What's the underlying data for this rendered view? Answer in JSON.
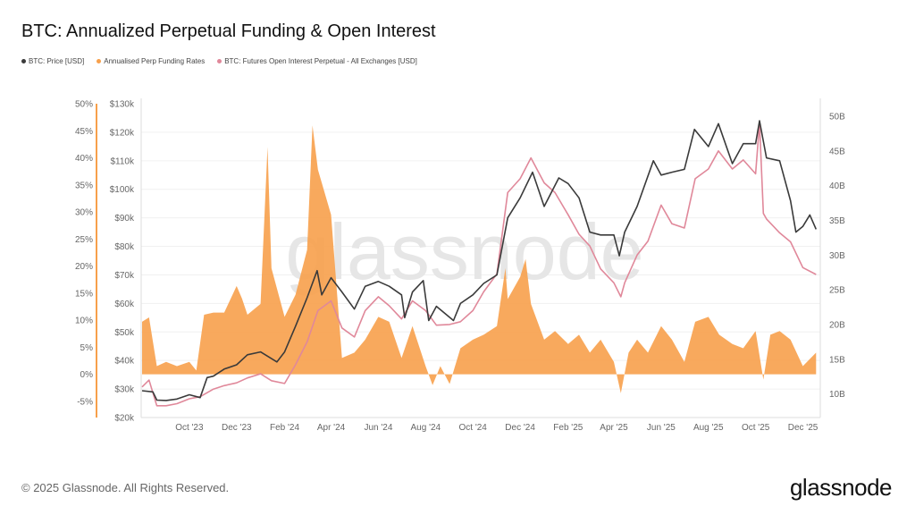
{
  "title": "BTC: Annualized Perpetual Funding & Open Interest",
  "legend": [
    {
      "label": "BTC: Price [USD]",
      "color": "#3a3a3a"
    },
    {
      "label": "Annualised Perp Funding Rates",
      "color": "#f7a04b"
    },
    {
      "label": "BTC: Futures Open Interest Perpetual - All Exchanges [USD]",
      "color": "#e0889a"
    }
  ],
  "watermark": "glassnode",
  "footer": "© 2025 Glassnode. All Rights Reserved.",
  "logo": "glassnode",
  "chart_data": {
    "type": "line",
    "title": "BTC: Annualized Perpetual Funding & Open Interest",
    "x_range": [
      "2023-08-01",
      "2025-12-20"
    ],
    "x_ticks": [
      {
        "date": "2023-10-01",
        "label": "Oct '23"
      },
      {
        "date": "2023-12-01",
        "label": "Dec '23"
      },
      {
        "date": "2024-02-01",
        "label": "Feb '24"
      },
      {
        "date": "2024-04-01",
        "label": "Apr '24"
      },
      {
        "date": "2024-06-01",
        "label": "Jun '24"
      },
      {
        "date": "2024-08-01",
        "label": "Aug '24"
      },
      {
        "date": "2024-10-01",
        "label": "Oct '24"
      },
      {
        "date": "2024-12-01",
        "label": "Dec '24"
      },
      {
        "date": "2025-02-01",
        "label": "Feb '25"
      },
      {
        "date": "2025-04-01",
        "label": "Apr '25"
      },
      {
        "date": "2025-06-01",
        "label": "Jun '25"
      },
      {
        "date": "2025-08-01",
        "label": "Aug '25"
      },
      {
        "date": "2025-10-01",
        "label": "Oct '25"
      },
      {
        "date": "2025-12-01",
        "label": "Dec '25"
      }
    ],
    "funding_axis": {
      "range": [
        -8,
        50
      ],
      "ticks": [
        "50%",
        "45%",
        "40%",
        "35%",
        "30%",
        "25%",
        "20%",
        "15%",
        "10%",
        "5%",
        "0%",
        "-5%"
      ],
      "values": [
        50,
        45,
        40,
        35,
        30,
        25,
        20,
        15,
        10,
        5,
        0,
        -5
      ]
    },
    "price_axis": {
      "range": [
        20000,
        130000
      ],
      "ticks": [
        "$130k",
        "$120k",
        "$110k",
        "$100k",
        "$90k",
        "$80k",
        "$70k",
        "$60k",
        "$50k",
        "$40k",
        "$30k",
        "$20k"
      ],
      "values": [
        130000,
        120000,
        110000,
        100000,
        90000,
        80000,
        70000,
        60000,
        50000,
        40000,
        30000,
        20000
      ]
    },
    "oi_axis": {
      "range": [
        6.6,
        51.8
      ],
      "ticks": [
        "50B",
        "45B",
        "40B",
        "35B",
        "30B",
        "25B",
        "20B",
        "15B",
        "10B"
      ],
      "values": [
        50,
        45,
        40,
        35,
        30,
        25,
        20,
        15,
        10
      ]
    },
    "grid": true,
    "legend_position": "top-left",
    "series": [
      {
        "name": "BTC: Price [USD]",
        "type": "line",
        "axis": "price",
        "color": "#3a3a3a",
        "points": [
          [
            "2023-08-01",
            29400
          ],
          [
            "2023-08-15",
            29000
          ],
          [
            "2023-08-20",
            26100
          ],
          [
            "2023-09-01",
            26000
          ],
          [
            "2023-09-15",
            26500
          ],
          [
            "2023-10-01",
            28000
          ],
          [
            "2023-10-15",
            27000
          ],
          [
            "2023-10-24",
            34000
          ],
          [
            "2023-11-01",
            34500
          ],
          [
            "2023-11-15",
            37000
          ],
          [
            "2023-12-01",
            38500
          ],
          [
            "2023-12-15",
            42000
          ],
          [
            "2024-01-01",
            43000
          ],
          [
            "2024-01-22",
            39500
          ],
          [
            "2024-02-01",
            43000
          ],
          [
            "2024-02-15",
            52000
          ],
          [
            "2024-03-01",
            62000
          ],
          [
            "2024-03-14",
            71500
          ],
          [
            "2024-03-20",
            63000
          ],
          [
            "2024-04-01",
            69000
          ],
          [
            "2024-04-15",
            64000
          ],
          [
            "2024-05-01",
            58000
          ],
          [
            "2024-05-15",
            66000
          ],
          [
            "2024-06-01",
            67700
          ],
          [
            "2024-06-15",
            66000
          ],
          [
            "2024-07-01",
            63000
          ],
          [
            "2024-07-05",
            55000
          ],
          [
            "2024-07-15",
            64000
          ],
          [
            "2024-07-29",
            68000
          ],
          [
            "2024-08-05",
            54000
          ],
          [
            "2024-08-15",
            59000
          ],
          [
            "2024-09-06",
            54000
          ],
          [
            "2024-09-15",
            60000
          ],
          [
            "2024-10-01",
            63000
          ],
          [
            "2024-10-15",
            67000
          ],
          [
            "2024-11-01",
            70000
          ],
          [
            "2024-11-15",
            90000
          ],
          [
            "2024-12-01",
            97000
          ],
          [
            "2024-12-17",
            106000
          ],
          [
            "2025-01-01",
            94000
          ],
          [
            "2025-01-20",
            104000
          ],
          [
            "2025-02-01",
            102000
          ],
          [
            "2025-02-15",
            97000
          ],
          [
            "2025-03-01",
            85000
          ],
          [
            "2025-03-15",
            84000
          ],
          [
            "2025-04-01",
            84000
          ],
          [
            "2025-04-08",
            76700
          ],
          [
            "2025-04-15",
            85000
          ],
          [
            "2025-05-01",
            94000
          ],
          [
            "2025-05-22",
            110000
          ],
          [
            "2025-06-01",
            105000
          ],
          [
            "2025-06-15",
            106000
          ],
          [
            "2025-07-01",
            107000
          ],
          [
            "2025-07-14",
            121000
          ],
          [
            "2025-08-01",
            115000
          ],
          [
            "2025-08-14",
            123000
          ],
          [
            "2025-09-01",
            109000
          ],
          [
            "2025-09-15",
            116000
          ],
          [
            "2025-10-01",
            116000
          ],
          [
            "2025-10-06",
            124000
          ],
          [
            "2025-10-15",
            111000
          ],
          [
            "2025-11-01",
            110000
          ],
          [
            "2025-11-15",
            96000
          ],
          [
            "2025-11-22",
            85000
          ],
          [
            "2025-12-01",
            87000
          ],
          [
            "2025-12-10",
            91000
          ],
          [
            "2025-12-18",
            86000
          ]
        ]
      },
      {
        "name": "Annualised Perp Funding Rates",
        "type": "area",
        "axis": "funding",
        "color": "#f7a04b",
        "points": [
          [
            "2023-08-01",
            9.7
          ],
          [
            "2023-08-10",
            10.5
          ],
          [
            "2023-08-20",
            1.5
          ],
          [
            "2023-09-01",
            2.3
          ],
          [
            "2023-09-15",
            1.5
          ],
          [
            "2023-10-01",
            2.3
          ],
          [
            "2023-10-10",
            0.7
          ],
          [
            "2023-10-20",
            11
          ],
          [
            "2023-11-01",
            11.4
          ],
          [
            "2023-11-15",
            11.4
          ],
          [
            "2023-12-01",
            16.3
          ],
          [
            "2023-12-08",
            14
          ],
          [
            "2023-12-15",
            11
          ],
          [
            "2024-01-01",
            13
          ],
          [
            "2024-01-10",
            42
          ],
          [
            "2024-01-15",
            19.6
          ],
          [
            "2024-02-01",
            10.6
          ],
          [
            "2024-02-15",
            14.7
          ],
          [
            "2024-03-01",
            23
          ],
          [
            "2024-03-08",
            46
          ],
          [
            "2024-03-15",
            37.8
          ],
          [
            "2024-04-01",
            29.5
          ],
          [
            "2024-04-15",
            3
          ],
          [
            "2024-05-01",
            4
          ],
          [
            "2024-05-15",
            6.4
          ],
          [
            "2024-06-01",
            10.6
          ],
          [
            "2024-06-15",
            9.7
          ],
          [
            "2024-07-01",
            3
          ],
          [
            "2024-07-15",
            8.9
          ],
          [
            "2024-08-01",
            1.5
          ],
          [
            "2024-08-10",
            -2
          ],
          [
            "2024-08-20",
            1.5
          ],
          [
            "2024-09-01",
            -1.8
          ],
          [
            "2024-09-15",
            4.8
          ],
          [
            "2024-10-01",
            6.4
          ],
          [
            "2024-10-15",
            7.3
          ],
          [
            "2024-11-01",
            8.9
          ],
          [
            "2024-11-12",
            19.6
          ],
          [
            "2024-11-15",
            13.9
          ],
          [
            "2024-12-01",
            18
          ],
          [
            "2024-12-08",
            21.3
          ],
          [
            "2024-12-15",
            13
          ],
          [
            "2025-01-01",
            6.4
          ],
          [
            "2025-01-15",
            8
          ],
          [
            "2025-02-01",
            5.6
          ],
          [
            "2025-02-15",
            7.3
          ],
          [
            "2025-03-01",
            4
          ],
          [
            "2025-03-15",
            6.4
          ],
          [
            "2025-04-01",
            2.3
          ],
          [
            "2025-04-10",
            -3.5
          ],
          [
            "2025-04-20",
            4
          ],
          [
            "2025-05-01",
            6.4
          ],
          [
            "2025-05-15",
            4
          ],
          [
            "2025-06-01",
            8.9
          ],
          [
            "2025-06-15",
            6.4
          ],
          [
            "2025-07-01",
            2.3
          ],
          [
            "2025-07-15",
            9.7
          ],
          [
            "2025-08-01",
            10.6
          ],
          [
            "2025-08-15",
            7.3
          ],
          [
            "2025-09-01",
            5.6
          ],
          [
            "2025-09-15",
            4.8
          ],
          [
            "2025-10-01",
            8
          ],
          [
            "2025-10-11",
            -1
          ],
          [
            "2025-10-20",
            7.3
          ],
          [
            "2025-11-01",
            8
          ],
          [
            "2025-11-15",
            6.4
          ],
          [
            "2025-12-01",
            1.5
          ],
          [
            "2025-12-18",
            4
          ]
        ]
      },
      {
        "name": "BTC: Futures Open Interest Perpetual - All Exchanges [USD]",
        "type": "line",
        "axis": "oi",
        "color": "#e0889a",
        "points": [
          [
            "2023-08-01",
            11
          ],
          [
            "2023-08-10",
            12
          ],
          [
            "2023-08-20",
            8.3
          ],
          [
            "2023-09-01",
            8.3
          ],
          [
            "2023-09-15",
            8.6
          ],
          [
            "2023-10-01",
            9.3
          ],
          [
            "2023-10-15",
            9.6
          ],
          [
            "2023-11-01",
            10.7
          ],
          [
            "2023-11-15",
            11.2
          ],
          [
            "2023-12-01",
            11.6
          ],
          [
            "2023-12-15",
            12.3
          ],
          [
            "2024-01-01",
            12.9
          ],
          [
            "2024-01-15",
            11.9
          ],
          [
            "2024-02-01",
            11.5
          ],
          [
            "2024-02-15",
            14.2
          ],
          [
            "2024-03-01",
            17.5
          ],
          [
            "2024-03-15",
            22
          ],
          [
            "2024-04-01",
            23.4
          ],
          [
            "2024-04-15",
            19.5
          ],
          [
            "2024-05-01",
            18.2
          ],
          [
            "2024-05-15",
            22
          ],
          [
            "2024-06-01",
            24
          ],
          [
            "2024-06-15",
            22.7
          ],
          [
            "2024-07-01",
            20.8
          ],
          [
            "2024-07-15",
            23.4
          ],
          [
            "2024-08-01",
            22
          ],
          [
            "2024-08-15",
            19.9
          ],
          [
            "2024-09-01",
            20
          ],
          [
            "2024-09-15",
            20.4
          ],
          [
            "2024-10-01",
            22
          ],
          [
            "2024-10-15",
            24.7
          ],
          [
            "2024-11-01",
            27.3
          ],
          [
            "2024-11-15",
            39
          ],
          [
            "2024-12-01",
            41
          ],
          [
            "2024-12-15",
            44
          ],
          [
            "2025-01-01",
            40.4
          ],
          [
            "2025-01-15",
            39
          ],
          [
            "2025-02-01",
            35.8
          ],
          [
            "2025-02-15",
            33
          ],
          [
            "2025-03-01",
            31.3
          ],
          [
            "2025-03-15",
            28
          ],
          [
            "2025-04-01",
            26
          ],
          [
            "2025-04-10",
            24
          ],
          [
            "2025-04-15",
            26
          ],
          [
            "2025-05-01",
            30
          ],
          [
            "2025-05-15",
            32
          ],
          [
            "2025-06-01",
            37.2
          ],
          [
            "2025-06-15",
            34.5
          ],
          [
            "2025-07-01",
            33.9
          ],
          [
            "2025-07-15",
            41
          ],
          [
            "2025-08-01",
            42.4
          ],
          [
            "2025-08-14",
            45
          ],
          [
            "2025-09-01",
            42.4
          ],
          [
            "2025-09-15",
            43.7
          ],
          [
            "2025-10-01",
            41.7
          ],
          [
            "2025-10-06",
            49
          ],
          [
            "2025-10-11",
            36
          ],
          [
            "2025-10-15",
            35.2
          ],
          [
            "2025-11-01",
            33.2
          ],
          [
            "2025-11-15",
            31.9
          ],
          [
            "2025-12-01",
            28.2
          ],
          [
            "2025-12-18",
            27.2
          ]
        ]
      }
    ]
  }
}
